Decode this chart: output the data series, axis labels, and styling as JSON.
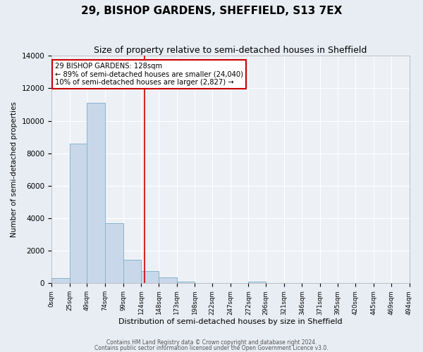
{
  "title": "29, BISHOP GARDENS, SHEFFIELD, S13 7EX",
  "subtitle": "Size of property relative to semi-detached houses in Sheffield",
  "xlabel": "Distribution of semi-detached houses by size in Sheffield",
  "ylabel": "Number of semi-detached properties",
  "bin_labels": [
    "0sqm",
    "25sqm",
    "49sqm",
    "74sqm",
    "99sqm",
    "124sqm",
    "148sqm",
    "173sqm",
    "198sqm",
    "222sqm",
    "247sqm",
    "272sqm",
    "296sqm",
    "321sqm",
    "346sqm",
    "371sqm",
    "395sqm",
    "420sqm",
    "445sqm",
    "469sqm",
    "494sqm"
  ],
  "bin_edges": [
    0,
    25,
    49,
    74,
    99,
    124,
    148,
    173,
    198,
    222,
    247,
    272,
    296,
    321,
    346,
    371,
    395,
    420,
    445,
    469,
    494
  ],
  "bar_heights": [
    300,
    8600,
    11100,
    3700,
    1450,
    750,
    350,
    100,
    0,
    0,
    0,
    100,
    0,
    0,
    0,
    0,
    0,
    0,
    0,
    0
  ],
  "bar_color": "#c8d8ea",
  "bar_edge_color": "#8ab4cc",
  "property_value": 128,
  "red_line_color": "#cc0000",
  "annotation_line1": "29 BISHOP GARDENS: 128sqm",
  "annotation_line2": "← 89% of semi-detached houses are smaller (24,040)",
  "annotation_line3": "10% of semi-detached houses are larger (2,827) →",
  "annotation_box_color": "#ffffff",
  "annotation_box_edge": "#cc0000",
  "ylim": [
    0,
    14000
  ],
  "yticks": [
    0,
    2000,
    4000,
    6000,
    8000,
    10000,
    12000,
    14000
  ],
  "footer1": "Contains HM Land Registry data © Crown copyright and database right 2024.",
  "footer2": "Contains public sector information licensed under the Open Government Licence v3.0.",
  "bg_color": "#e8edf3",
  "plot_bg_color": "#edf1f6",
  "grid_color": "#ffffff",
  "title_fontsize": 11,
  "subtitle_fontsize": 9
}
